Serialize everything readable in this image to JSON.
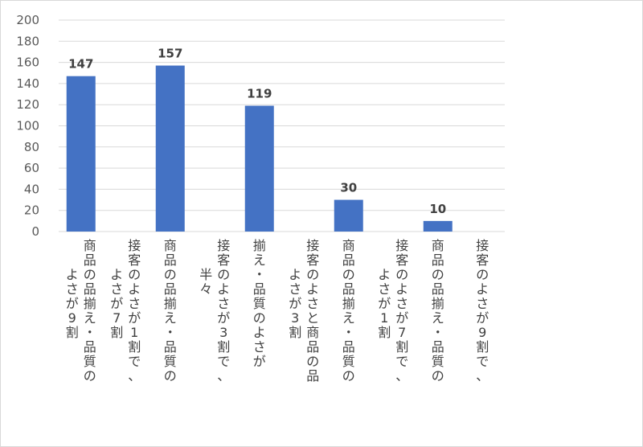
{
  "chart_data": {
    "type": "bar",
    "title": "",
    "xlabel": "",
    "ylabel": "",
    "ylim": [
      0,
      200
    ],
    "yticks": [
      0,
      20,
      40,
      60,
      80,
      100,
      120,
      140,
      160,
      180,
      200
    ],
    "grid": true,
    "legend": "none",
    "bar_color": "#4472c4",
    "categories": [
      [
        "商品の品揃え・品質の",
        "よさが9割"
      ],
      [
        "接客のよさが1割で、",
        "よさが7割"
      ],
      [
        "商品の品揃え・品質の"
      ],
      [
        "接客のよさが3割で、",
        "半々"
      ],
      [
        "揃え・品質のよさが"
      ],
      [
        "接客のよさと商品の品",
        "よさが3割"
      ],
      [
        "商品の品揃え・品質の"
      ],
      [
        "接客のよさが7割で、",
        "よさが1割"
      ],
      [
        "商品の品揃え・品質の"
      ],
      [
        "接客のよさが9割で、"
      ]
    ],
    "values": [
      147,
      null,
      157,
      null,
      119,
      null,
      30,
      null,
      10,
      null
    ]
  }
}
